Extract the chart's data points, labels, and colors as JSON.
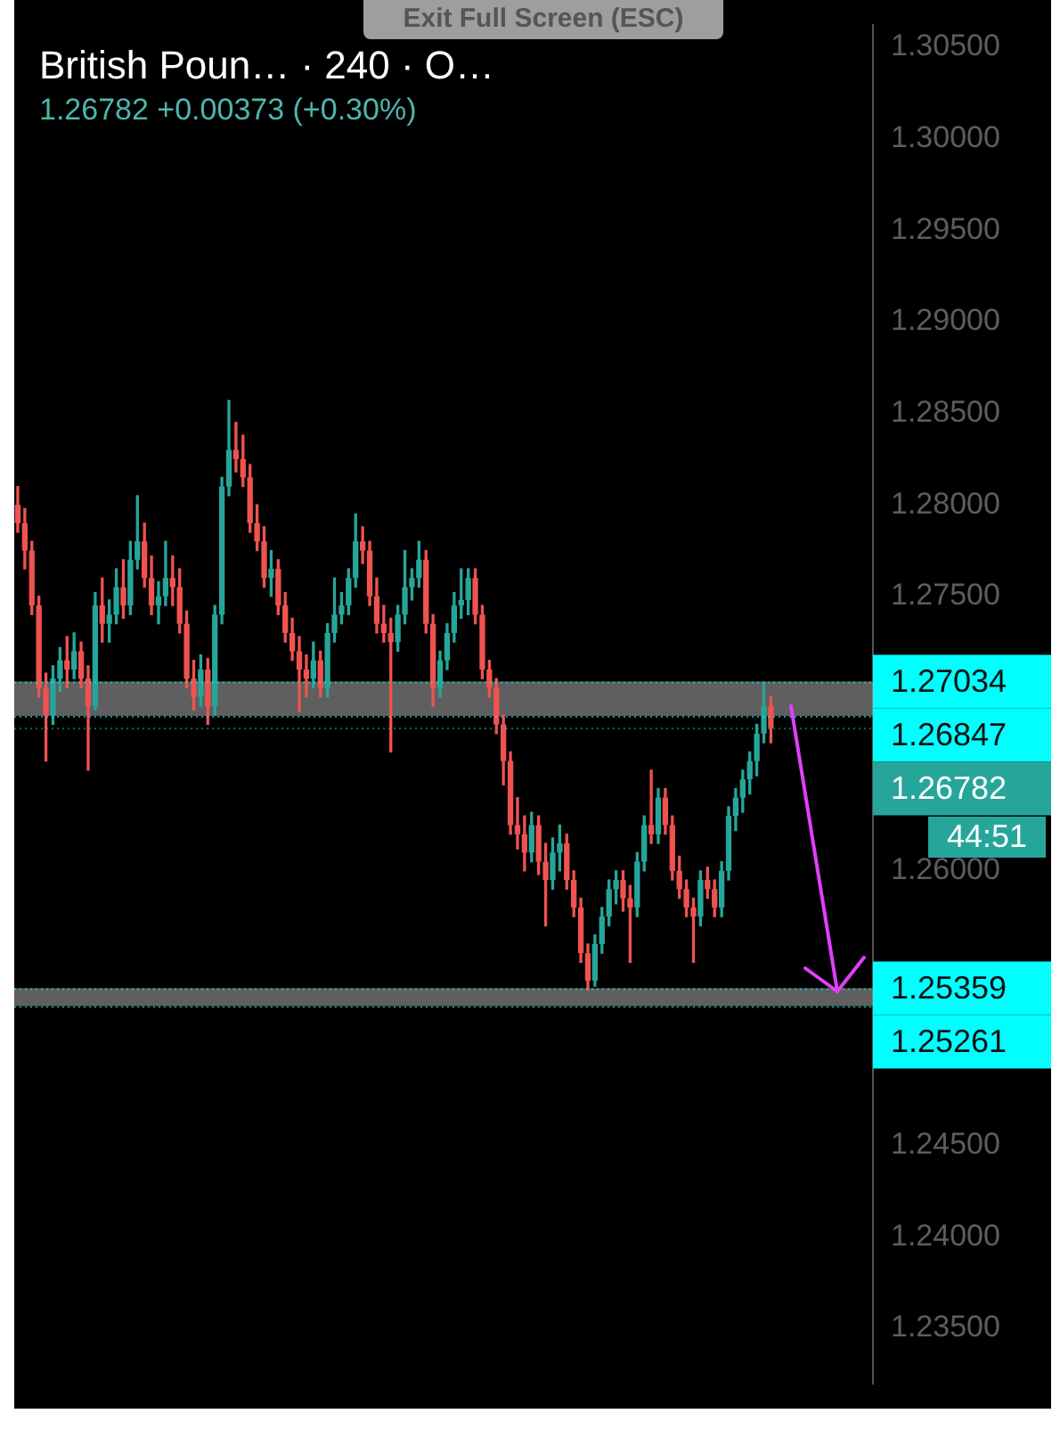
{
  "chart_data": {
    "type": "candlestick",
    "title": "British Poun… · 240 · O…",
    "subtitle": "1.26782  +0.00373 (+0.30%)",
    "annotations": [
      "Exit Full Screen (ESC)",
      "44:51"
    ],
    "categories": [
      null,
      null,
      null,
      null,
      null,
      null,
      null,
      null,
      null,
      null,
      null,
      null,
      null,
      null,
      null,
      null,
      null,
      null,
      null,
      null,
      null,
      null,
      null,
      null,
      null,
      null,
      null,
      null,
      null,
      null,
      null,
      null,
      null,
      null,
      null,
      null,
      null,
      null,
      null,
      null,
      null,
      null,
      null,
      null,
      null,
      null,
      null,
      null,
      null,
      null,
      null,
      null,
      null,
      null,
      null,
      null,
      null,
      null,
      null,
      null,
      null,
      null,
      null,
      null,
      null,
      null,
      null,
      null,
      null,
      null,
      null,
      null,
      null,
      null,
      null,
      null,
      null,
      null,
      null,
      null,
      null,
      null,
      null,
      null,
      null,
      null,
      null,
      null,
      null,
      null,
      null,
      null,
      null,
      null,
      null,
      null,
      null,
      null,
      null,
      null,
      null,
      null,
      null,
      null,
      null,
      null,
      null,
      null,
      null,
      null,
      null,
      null,
      null,
      null,
      null,
      null,
      null,
      null,
      null,
      null,
      null,
      null
    ],
    "ohlc": [
      [
        1.28,
        1.281,
        1.2785,
        1.279
      ],
      [
        1.279,
        1.2798,
        1.2765,
        1.2775
      ],
      [
        1.2775,
        1.278,
        1.274,
        1.2745
      ],
      [
        1.2745,
        1.275,
        1.2695,
        1.27
      ],
      [
        1.27,
        1.2708,
        1.266,
        1.2685
      ],
      [
        1.2685,
        1.2712,
        1.268,
        1.2705
      ],
      [
        1.2705,
        1.2722,
        1.2698,
        1.2715
      ],
      [
        1.2715,
        1.2728,
        1.27,
        1.271
      ],
      [
        1.271,
        1.273,
        1.2705,
        1.272
      ],
      [
        1.272,
        1.2725,
        1.27,
        1.2705
      ],
      [
        1.2705,
        1.2712,
        1.2655,
        1.269
      ],
      [
        1.269,
        1.2752,
        1.2688,
        1.2745
      ],
      [
        1.2745,
        1.276,
        1.2725,
        1.2735
      ],
      [
        1.2735,
        1.2748,
        1.2725,
        1.274
      ],
      [
        1.274,
        1.2765,
        1.2735,
        1.2755
      ],
      [
        1.2755,
        1.277,
        1.2738,
        1.2745
      ],
      [
        1.2745,
        1.278,
        1.274,
        1.277
      ],
      [
        1.277,
        1.2805,
        1.2765,
        1.278
      ],
      [
        1.278,
        1.279,
        1.2755,
        1.276
      ],
      [
        1.276,
        1.2772,
        1.274,
        1.2745
      ],
      [
        1.2745,
        1.2758,
        1.2735,
        1.275
      ],
      [
        1.275,
        1.278,
        1.2745,
        1.276
      ],
      [
        1.276,
        1.2772,
        1.2745,
        1.2755
      ],
      [
        1.2755,
        1.2765,
        1.273,
        1.2735
      ],
      [
        1.2735,
        1.2742,
        1.27,
        1.2705
      ],
      [
        1.2705,
        1.2715,
        1.2688,
        1.2695
      ],
      [
        1.2695,
        1.2718,
        1.269,
        1.271
      ],
      [
        1.271,
        1.2716,
        1.268,
        1.269
      ],
      [
        1.269,
        1.2745,
        1.2685,
        1.274
      ],
      [
        1.274,
        1.2815,
        1.2735,
        1.281
      ],
      [
        1.281,
        1.2857,
        1.2805,
        1.283
      ],
      [
        1.283,
        1.2845,
        1.2818,
        1.2825
      ],
      [
        1.2825,
        1.2838,
        1.281,
        1.2815
      ],
      [
        1.2815,
        1.2822,
        1.2785,
        1.279
      ],
      [
        1.279,
        1.28,
        1.2775,
        1.278
      ],
      [
        1.278,
        1.2788,
        1.2755,
        1.276
      ],
      [
        1.276,
        1.2775,
        1.275,
        1.2765
      ],
      [
        1.2765,
        1.277,
        1.274,
        1.2745
      ],
      [
        1.2745,
        1.2752,
        1.2725,
        1.273
      ],
      [
        1.273,
        1.2738,
        1.2715,
        1.272
      ],
      [
        1.272,
        1.2728,
        1.2687,
        1.271
      ],
      [
        1.271,
        1.2718,
        1.2695,
        1.2705
      ],
      [
        1.2705,
        1.2725,
        1.27,
        1.2715
      ],
      [
        1.2715,
        1.272,
        1.2695,
        1.27
      ],
      [
        1.27,
        1.2735,
        1.2695,
        1.273
      ],
      [
        1.273,
        1.276,
        1.2725,
        1.274
      ],
      [
        1.274,
        1.2752,
        1.2735,
        1.2745
      ],
      [
        1.2745,
        1.2765,
        1.274,
        1.276
      ],
      [
        1.276,
        1.2795,
        1.2755,
        1.278
      ],
      [
        1.278,
        1.2788,
        1.2768,
        1.2775
      ],
      [
        1.2775,
        1.278,
        1.2745,
        1.275
      ],
      [
        1.275,
        1.276,
        1.273,
        1.2735
      ],
      [
        1.2735,
        1.2745,
        1.2725,
        1.273
      ],
      [
        1.273,
        1.2738,
        1.2665,
        1.2725
      ],
      [
        1.2725,
        1.2745,
        1.272,
        1.274
      ],
      [
        1.274,
        1.2775,
        1.2735,
        1.2755
      ],
      [
        1.2755,
        1.2765,
        1.2748,
        1.276
      ],
      [
        1.276,
        1.278,
        1.2755,
        1.277
      ],
      [
        1.277,
        1.2775,
        1.273,
        1.2735
      ],
      [
        1.2735,
        1.274,
        1.269,
        1.27
      ],
      [
        1.27,
        1.272,
        1.2695,
        1.2715
      ],
      [
        1.2715,
        1.2735,
        1.271,
        1.273
      ],
      [
        1.273,
        1.2752,
        1.2725,
        1.2745
      ],
      [
        1.2745,
        1.2765,
        1.2738,
        1.2748
      ],
      [
        1.2748,
        1.2765,
        1.274,
        1.276
      ],
      [
        1.276,
        1.2765,
        1.2735,
        1.274
      ],
      [
        1.274,
        1.2745,
        1.2705,
        1.271
      ],
      [
        1.271,
        1.2715,
        1.2695,
        1.27
      ],
      [
        1.27,
        1.2705,
        1.2675,
        1.268
      ],
      [
        1.268,
        1.2685,
        1.2647,
        1.266
      ],
      [
        1.266,
        1.2665,
        1.262,
        1.2625
      ],
      [
        1.2625,
        1.264,
        1.2612,
        1.262
      ],
      [
        1.262,
        1.263,
        1.26,
        1.261
      ],
      [
        1.261,
        1.2632,
        1.2605,
        1.2625
      ],
      [
        1.2625,
        1.263,
        1.2598,
        1.2605
      ],
      [
        1.2605,
        1.2615,
        1.257,
        1.2595
      ],
      [
        1.2595,
        1.2618,
        1.259,
        1.261
      ],
      [
        1.261,
        1.2625,
        1.26,
        1.2615
      ],
      [
        1.2615,
        1.262,
        1.259,
        1.2595
      ],
      [
        1.2595,
        1.26,
        1.2575,
        1.258
      ],
      [
        1.258,
        1.2585,
        1.255,
        1.2555
      ],
      [
        1.2555,
        1.256,
        1.2535,
        1.254
      ],
      [
        1.254,
        1.2565,
        1.2537,
        1.256
      ],
      [
        1.256,
        1.258,
        1.2555,
        1.2575
      ],
      [
        1.2575,
        1.2595,
        1.257,
        1.259
      ],
      [
        1.259,
        1.26,
        1.2582,
        1.2595
      ],
      [
        1.2595,
        1.26,
        1.2578,
        1.2585
      ],
      [
        1.2585,
        1.2592,
        1.255,
        1.258
      ],
      [
        1.258,
        1.261,
        1.2575,
        1.2605
      ],
      [
        1.2605,
        1.263,
        1.26,
        1.2625
      ],
      [
        1.2625,
        1.2655,
        1.2615,
        1.262
      ],
      [
        1.262,
        1.2645,
        1.2615,
        1.264
      ],
      [
        1.264,
        1.2645,
        1.262,
        1.2625
      ],
      [
        1.2625,
        1.263,
        1.2595,
        1.26
      ],
      [
        1.26,
        1.2608,
        1.2585,
        1.259
      ],
      [
        1.259,
        1.2595,
        1.2575,
        1.258
      ],
      [
        1.258,
        1.2585,
        1.255,
        1.2575
      ],
      [
        1.2575,
        1.26,
        1.257,
        1.2595
      ],
      [
        1.2595,
        1.2602,
        1.2585,
        1.259
      ],
      [
        1.259,
        1.2595,
        1.2575,
        1.258
      ],
      [
        1.258,
        1.2605,
        1.2575,
        1.26
      ],
      [
        1.26,
        1.2635,
        1.2595,
        1.263
      ],
      [
        1.263,
        1.2645,
        1.2622,
        1.264
      ],
      [
        1.264,
        1.2655,
        1.2632,
        1.265
      ],
      [
        1.265,
        1.2665,
        1.2642,
        1.266
      ],
      [
        1.266,
        1.268,
        1.2652,
        1.2675
      ],
      [
        1.2675,
        1.2703,
        1.267,
        1.269
      ],
      [
        1.269,
        1.2695,
        1.267,
        1.26782
      ],
      null,
      null,
      null,
      null,
      null,
      null,
      null,
      null,
      null,
      null,
      null,
      null,
      null,
      null
    ],
    "colors": [
      "#ef5350",
      "#ef5350",
      "#ef5350",
      "#ef5350",
      "#ef5350",
      "#26a69a",
      "#26a69a",
      "#ef5350",
      "#26a69a",
      "#ef5350",
      "#ef5350",
      "#26a69a",
      "#ef5350",
      "#26a69a",
      "#26a69a",
      "#ef5350",
      "#26a69a",
      "#26a69a",
      "#ef5350",
      "#ef5350",
      "#26a69a",
      "#26a69a",
      "#ef5350",
      "#ef5350",
      "#ef5350",
      "#ef5350",
      "#26a69a",
      "#ef5350",
      "#26a69a",
      "#26a69a",
      "#26a69a",
      "#ef5350",
      "#ef5350",
      "#ef5350",
      "#ef5350",
      "#ef5350",
      "#26a69a",
      "#ef5350",
      "#ef5350",
      "#ef5350",
      "#ef5350",
      "#ef5350",
      "#26a69a",
      "#ef5350",
      "#26a69a",
      "#26a69a",
      "#26a69a",
      "#26a69a",
      "#26a69a",
      "#ef5350",
      "#ef5350",
      "#ef5350",
      "#ef5350",
      "#ef5350",
      "#26a69a",
      "#26a69a",
      "#26a69a",
      "#26a69a",
      "#ef5350",
      "#ef5350",
      "#26a69a",
      "#26a69a",
      "#26a69a",
      "#26a69a",
      "#26a69a",
      "#ef5350",
      "#ef5350",
      "#ef5350",
      "#ef5350",
      "#ef5350",
      "#ef5350",
      "#ef5350",
      "#ef5350",
      "#26a69a",
      "#ef5350",
      "#ef5350",
      "#26a69a",
      "#26a69a",
      "#ef5350",
      "#ef5350",
      "#ef5350",
      "#ef5350",
      "#26a69a",
      "#26a69a",
      "#26a69a",
      "#26a69a",
      "#ef5350",
      "#ef5350",
      "#26a69a",
      "#26a69a",
      "#ef5350",
      "#26a69a",
      "#ef5350",
      "#ef5350",
      "#ef5350",
      "#ef5350",
      "#ef5350",
      "#26a69a",
      "#ef5350",
      "#ef5350",
      "#26a69a",
      "#26a69a",
      "#26a69a",
      "#26a69a",
      "#26a69a",
      "#26a69a",
      "#26a69a",
      "#ef5350",
      null,
      null,
      null,
      null,
      null,
      null,
      null,
      null,
      null,
      null,
      null,
      null,
      null,
      null
    ],
    "ylim": [
      1.232,
      1.3062
    ],
    "yticks": [
      {
        "value": 1.235,
        "label": "1.23500"
      },
      {
        "value": 1.24,
        "label": "1.24000"
      },
      {
        "value": 1.245,
        "label": "1.24500"
      },
      {
        "value": 1.26,
        "label": "1.26000"
      },
      {
        "value": 1.27,
        "label": null
      },
      {
        "value": 1.275,
        "label": "1.27500"
      },
      {
        "value": 1.28,
        "label": "1.28000"
      },
      {
        "value": 1.285,
        "label": "1.28500"
      },
      {
        "value": 1.29,
        "label": "1.29000"
      },
      {
        "value": 1.295,
        "label": "1.29500"
      },
      {
        "value": 1.3,
        "label": "1.30000"
      },
      {
        "value": 1.305,
        "label": "1.30500"
      }
    ],
    "tick_labels": "y",
    "ref_lines": [
      {
        "axis": "y",
        "value": 1.27034,
        "label": "1.27034",
        "color": "#00ffff",
        "line_style": "dotted"
      },
      {
        "axis": "y",
        "value": 1.26847,
        "label": "1.26847",
        "color": "#00ffff",
        "line_style": "dotted"
      },
      {
        "axis": "y",
        "value": 1.26782,
        "label": "1.26782",
        "color": "#26a69a",
        "line_style": "dotted"
      },
      {
        "axis": "y",
        "value": 1.25359,
        "label": "1.25359",
        "color": "#00ffff",
        "line_style": "dotted"
      },
      {
        "axis": "y",
        "value": 1.25261,
        "label": "1.25261",
        "color": "#00ffff",
        "line_style": "dotted"
      }
    ],
    "bands": [
      {
        "axis": "y",
        "from": 1.26847,
        "to": 1.27034,
        "color": "#9e9e9e"
      },
      {
        "axis": "y",
        "from": 1.25261,
        "to": 1.25359,
        "color": "#9e9e9e"
      }
    ]
  }
}
